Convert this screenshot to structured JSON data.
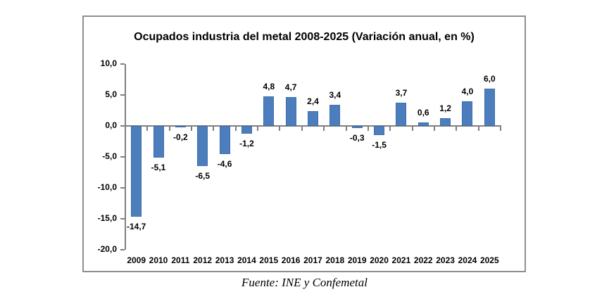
{
  "chart_data": {
    "type": "bar",
    "title": "Ocupados industria del metal 2008-2025 (Variación anual, en %)",
    "categories": [
      "2009",
      "2010",
      "2011",
      "2012",
      "2013",
      "2014",
      "2015",
      "2016",
      "2017",
      "2018",
      "2019",
      "2020",
      "2021",
      "2022",
      "2023",
      "2024",
      "2025"
    ],
    "values": [
      -14.7,
      -5.1,
      -0.2,
      -6.5,
      -4.6,
      -1.2,
      4.8,
      4.7,
      2.4,
      3.4,
      -0.3,
      -1.5,
      3.7,
      0.6,
      1.2,
      4.0,
      6.0
    ],
    "value_labels": [
      "-14,7",
      "-5,1",
      "-0,2",
      "-6,5",
      "-4,6",
      "-1,2",
      "4,8",
      "4,7",
      "2,4",
      "3,4",
      "-0,3",
      "-1,5",
      "3,7",
      "0,6",
      "1,2",
      "4,0",
      "6,0"
    ],
    "y_axis": {
      "min": -20,
      "max": 10,
      "ticks": [
        {
          "value": 10,
          "label": "10,0"
        },
        {
          "value": 5,
          "label": "5,0"
        },
        {
          "value": 0,
          "label": "0,0"
        },
        {
          "value": -5,
          "label": "-5,0"
        },
        {
          "value": -10,
          "label": "-10,0"
        },
        {
          "value": -15,
          "label": "-15,0"
        },
        {
          "value": -20,
          "label": "-20,0"
        }
      ]
    },
    "grid": false,
    "legend": false,
    "colors": {
      "bar_fill": "#4C7EBD",
      "bar_border": "#3E6DA8",
      "axis": "#7f7f7f",
      "frame_border": "#8e8e8e",
      "label": "#000000"
    }
  },
  "footer": {
    "source": "Fuente: INE y Confemetal"
  }
}
